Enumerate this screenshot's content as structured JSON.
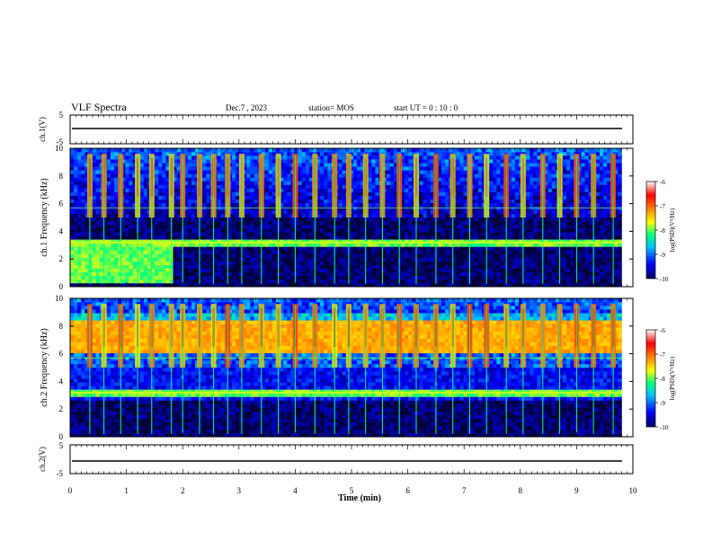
{
  "header": {
    "title": "VLF Spectra",
    "date": "Dec.7 , 2023",
    "station": "station= MOS",
    "start": "start UT =  0 : 10 : 0"
  },
  "chart_data": {
    "type": "heatmap",
    "xlabel": "Time (min)",
    "xlim": [
      0,
      10
    ],
    "x_ticks": [
      "0",
      "1",
      "2",
      "3",
      "4",
      "5",
      "6",
      "7",
      "8",
      "9",
      "10"
    ],
    "voltage_panels": [
      {
        "ylabel": "ch.1(V)",
        "ylim": [
          -5,
          5
        ],
        "tick_labels": [
          "5",
          "-5"
        ],
        "level": 0
      },
      {
        "ylabel": "ch.2(V)",
        "ylim": [
          -5,
          5
        ],
        "tick_labels": [
          "5",
          "-5"
        ],
        "level": 0
      }
    ],
    "spectrogram_panels": [
      {
        "ylabel": "ch.1 Frequency (kHz)",
        "ylim": [
          0,
          10
        ],
        "tick_labels": [
          "0",
          "2",
          "4",
          "6",
          "8",
          "10"
        ]
      },
      {
        "ylabel": "ch.2 Frequency (kHz)",
        "ylim": [
          0,
          10
        ],
        "tick_labels": [
          "0",
          "2",
          "4",
          "6",
          "8",
          "10"
        ]
      }
    ],
    "colorbar": {
      "label": "log(PSD)(V²/Hz)",
      "range": [
        -10,
        -6
      ],
      "tick_labels": [
        "-6",
        "-7",
        "-8",
        "-9",
        "-10"
      ],
      "colors": [
        "#000080",
        "#0000ff",
        "#00bfff",
        "#00ff80",
        "#ffff00",
        "#ff8000",
        "#ff0000",
        "#ffffff"
      ]
    },
    "data_end_min": 9.8,
    "burst_times_min": [
      0.35,
      0.6,
      0.9,
      1.2,
      1.45,
      1.8,
      2.0,
      2.3,
      2.55,
      2.8,
      3.05,
      3.4,
      3.7,
      4.0,
      4.35,
      4.7,
      4.95,
      5.25,
      5.55,
      5.85,
      6.15,
      6.5,
      6.8,
      7.1,
      7.4,
      7.75,
      8.05,
      8.4,
      8.7,
      9.0,
      9.3,
      9.65
    ],
    "bands_khz": [
      {
        "panel": 1,
        "from": 3.0,
        "to": 3.4,
        "level": -8
      },
      {
        "panel": 1,
        "from": 0.3,
        "to": 3.4,
        "t_from": 0,
        "t_to": 1.8,
        "level": -8
      },
      {
        "panel": 2,
        "from": 3.0,
        "to": 3.4,
        "level": -8
      },
      {
        "panel": 2,
        "from": 6.0,
        "to": 8.5,
        "level": -7.3
      }
    ]
  }
}
